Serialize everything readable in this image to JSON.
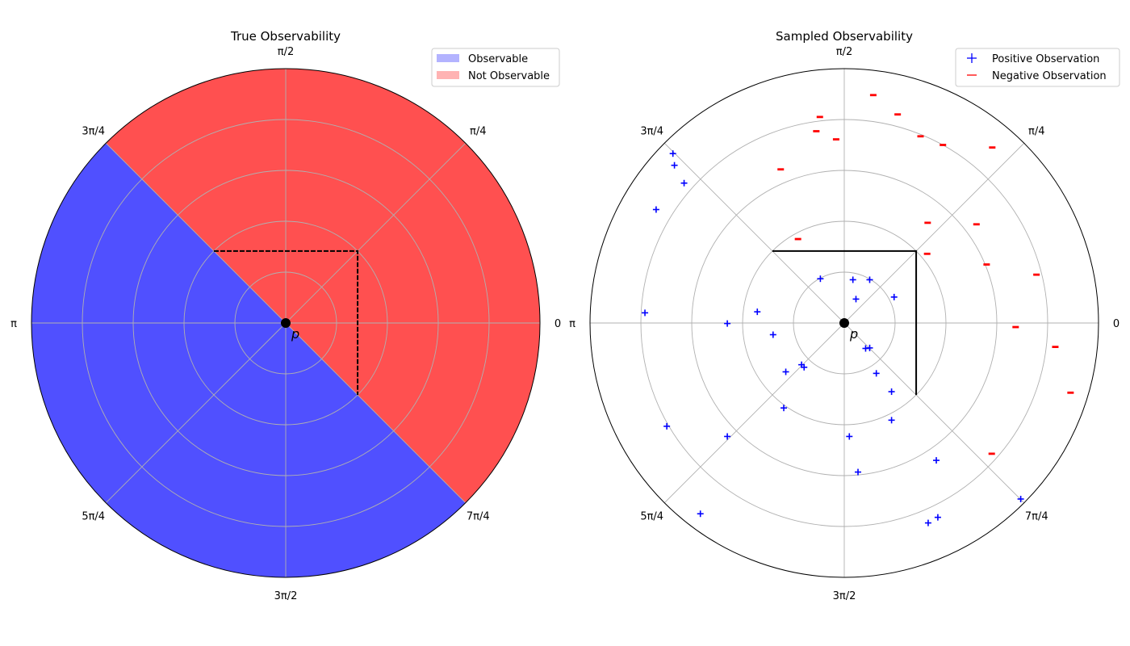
{
  "colors": {
    "observable": "#5050ff",
    "not_observable": "#ff5050",
    "observable_legend": "#b3b3ff",
    "not_observable_legend": "#ffb3b3",
    "positive_marker": "#0000ff",
    "negative_marker": "#ff0000",
    "grid": "#b0b0b0",
    "origin_point": "#000000"
  },
  "chart_data": [
    {
      "type": "polar-region",
      "title": "True Observability",
      "angle_tick_labels": [
        "0",
        "π/4",
        "π/2",
        "3π/4",
        "π",
        "5π/4",
        "3π/2",
        "7π/4"
      ],
      "r_range": [
        0,
        5
      ],
      "r_gridlines": [
        1,
        2,
        3,
        4
      ],
      "grid": true,
      "origin_label": "p",
      "legend": {
        "placement": "top-right",
        "entries": [
          {
            "label": "Observable",
            "color_key": "observable_legend"
          },
          {
            "label": "Not Observable",
            "color_key": "not_observable_legend"
          }
        ]
      },
      "obstacle_square": {
        "half_width": 1.414
      },
      "regions": [
        {
          "label": "Observable",
          "theta_start_deg": 135,
          "theta_end_deg": 315
        },
        {
          "label": "Not Observable",
          "theta_start_deg": -45,
          "theta_end_deg": 135
        }
      ]
    },
    {
      "type": "polar-scatter",
      "title": "Sampled Observability",
      "angle_tick_labels": [
        "0",
        "π/4",
        "π/2",
        "3π/4",
        "π",
        "5π/4",
        "3π/2",
        "7π/4"
      ],
      "r_range": [
        0,
        5
      ],
      "r_gridlines": [
        1,
        2,
        3,
        4
      ],
      "grid": true,
      "origin_label": "p",
      "legend": {
        "placement": "top-right",
        "entries": [
          {
            "label": "Positive Observation",
            "marker": "+",
            "color_key": "positive_marker"
          },
          {
            "label": "Negative Observation",
            "marker": "_",
            "color_key": "negative_marker"
          }
        ]
      },
      "obstacle_square": {
        "half_width": 1.414
      },
      "series": [
        {
          "name": "Positive Observation",
          "points": [
            [
              0.5,
              0.85
            ],
            [
              -0.47,
              0.87
            ],
            [
              0.17,
              0.85
            ],
            [
              0.23,
              0.47
            ],
            [
              0.98,
              0.51
            ],
            [
              -1.71,
              0.22
            ],
            [
              -2.3,
              -0.01
            ],
            [
              -1.4,
              -0.23
            ],
            [
              -3.92,
              0.2
            ],
            [
              -3.7,
              2.23
            ],
            [
              -3.15,
              2.75
            ],
            [
              -3.34,
              3.1
            ],
            [
              -3.37,
              3.33
            ],
            [
              -1.15,
              -0.96
            ],
            [
              -0.79,
              -0.87
            ],
            [
              -0.84,
              -0.82
            ],
            [
              -1.19,
              -1.67
            ],
            [
              0.5,
              -0.49
            ],
            [
              0.42,
              -0.5
            ],
            [
              0.63,
              -0.99
            ],
            [
              0.93,
              -1.35
            ],
            [
              0.93,
              -1.91
            ],
            [
              0.1,
              -2.23
            ],
            [
              0.27,
              -2.93
            ],
            [
              1.81,
              -2.7
            ],
            [
              1.84,
              -3.82
            ],
            [
              1.65,
              -3.93
            ],
            [
              3.47,
              -3.46
            ],
            [
              -2.3,
              -2.23
            ],
            [
              -3.49,
              -2.03
            ],
            [
              -2.83,
              -3.75
            ]
          ]
        },
        {
          "name": "Negative Observation",
          "points": [
            [
              1.64,
              1.97
            ],
            [
              1.63,
              1.36
            ],
            [
              2.6,
              1.94
            ],
            [
              2.8,
              1.15
            ],
            [
              3.78,
              0.95
            ],
            [
              3.37,
              -0.08
            ],
            [
              4.15,
              -0.47
            ],
            [
              4.45,
              -1.37
            ],
            [
              2.9,
              -2.57
            ],
            [
              1.94,
              3.5
            ],
            [
              2.91,
              3.45
            ],
            [
              1.5,
              3.67
            ],
            [
              1.05,
              4.1
            ],
            [
              0.57,
              4.48
            ],
            [
              -0.16,
              3.61
            ],
            [
              -0.55,
              3.77
            ],
            [
              -0.48,
              4.05
            ],
            [
              -1.25,
              3.02
            ],
            [
              -0.91,
              1.65
            ]
          ]
        }
      ]
    }
  ]
}
